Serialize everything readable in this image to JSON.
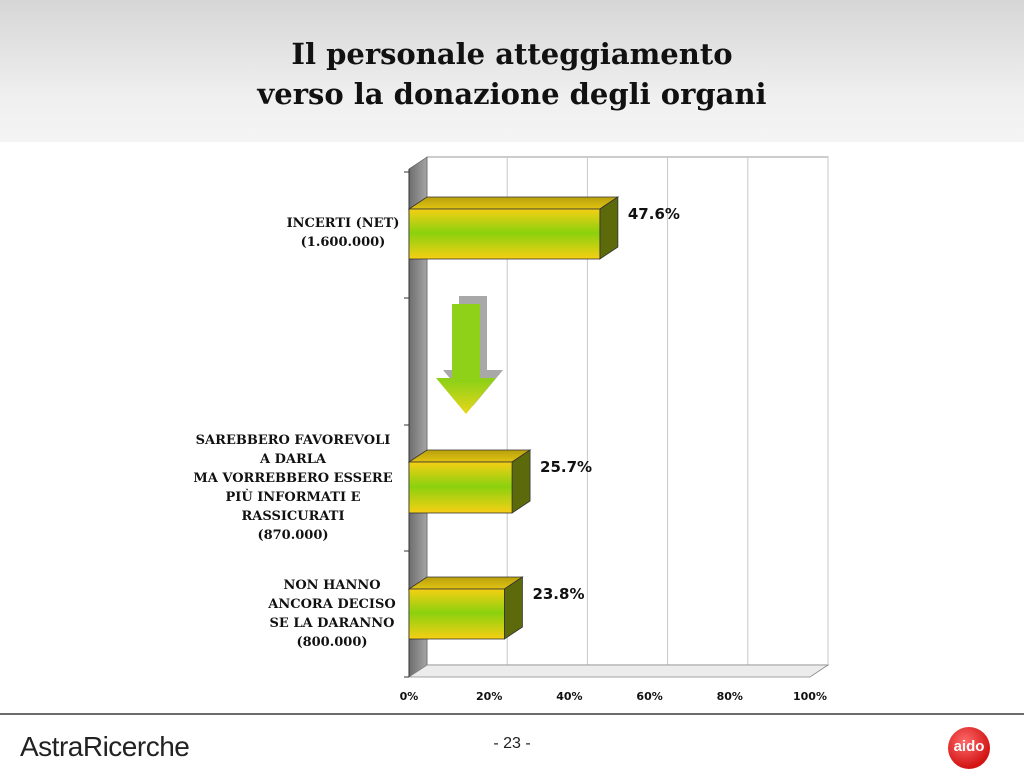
{
  "slide": {
    "title_line1": "Il personale atteggiamento",
    "title_line2": "verso la donazione degli organi"
  },
  "footer": {
    "brand": "AstraRicerche",
    "page": "- 23 -",
    "logo_text": "aido"
  },
  "colors": {
    "bar_yellow": "#f6cf14",
    "bar_green": "#8bd10e",
    "bar_side": "#5c6a0c",
    "wall": "#8a8a8a",
    "arrow_green": "#8fd118",
    "arrow_yellow": "#e9d61a"
  },
  "chart_data": {
    "type": "bar",
    "orientation": "horizontal",
    "categories": [
      "INCERTI (NET)\n(1.600.000)",
      "SAREBBERO FAVOREVOLI\nA DARLA\nMA VORREBBERO ESSERE\nPIÙ INFORMATI E\nRASSICURATI\n(870.000)",
      "NON HANNO\nANCORA DECISO\nSE LA DARANNO\n(800.000)"
    ],
    "values": [
      47.6,
      25.7,
      23.8
    ],
    "value_labels": [
      "47.6%",
      "25.7%",
      "23.8%"
    ],
    "xlim": [
      0,
      100
    ],
    "x_ticks": [
      "0%",
      "20%",
      "40%",
      "60%",
      "80%",
      "100%"
    ],
    "grid": true,
    "annotation": "down-arrow"
  }
}
